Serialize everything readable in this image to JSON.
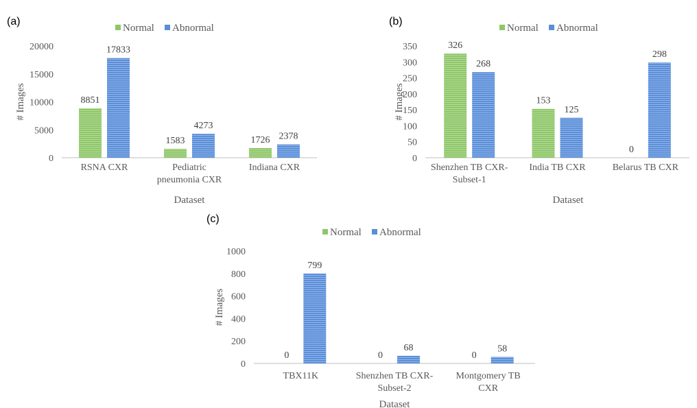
{
  "colors": {
    "normal": "#8fc66a",
    "abnormal": "#5b8ed8",
    "axis": "#bfbfbf"
  },
  "chart_data": [
    {
      "type": "bar",
      "panel_label": "(a)",
      "categories": [
        [
          "RSNA CXR"
        ],
        [
          "Pediatric",
          "pneumonia CXR"
        ],
        [
          "Indiana CXR"
        ]
      ],
      "series": [
        {
          "name": "Normal",
          "values": [
            8851,
            1583,
            1726
          ]
        },
        {
          "name": "Abnormal",
          "values": [
            17833,
            4273,
            2378
          ]
        }
      ],
      "data_labels": [
        [
          "8851",
          "1583",
          "1726"
        ],
        [
          "17833",
          "4273",
          "2378"
        ]
      ],
      "xlabel": "Dataset",
      "ylabel": "# Images",
      "ylim": [
        0,
        20000
      ],
      "yticks": [
        0,
        5000,
        10000,
        15000,
        20000
      ],
      "grid": false,
      "legend": "top"
    },
    {
      "type": "bar",
      "panel_label": "(b)",
      "categories": [
        [
          "Shenzhen TB CXR-",
          "Subset-1"
        ],
        [
          "India TB CXR"
        ],
        [
          "Belarus TB CXR"
        ]
      ],
      "series": [
        {
          "name": "Normal",
          "values": [
            326,
            153,
            0
          ]
        },
        {
          "name": "Abnormal",
          "values": [
            268,
            125,
            298
          ]
        }
      ],
      "data_labels": [
        [
          "326",
          "153",
          "0"
        ],
        [
          "268",
          "125",
          "298"
        ]
      ],
      "xlabel": "Dataset",
      "ylabel": "# Images",
      "ylim": [
        0,
        350
      ],
      "yticks": [
        0,
        50,
        100,
        150,
        200,
        250,
        300,
        350
      ],
      "grid": false,
      "legend": "top"
    },
    {
      "type": "bar",
      "panel_label": "(c)",
      "categories": [
        [
          "TBX11K"
        ],
        [
          "Shenzhen TB CXR-",
          "Subset-2"
        ],
        [
          "Montgomery TB",
          "CXR"
        ]
      ],
      "series": [
        {
          "name": "Normal",
          "values": [
            0,
            0,
            0
          ]
        },
        {
          "name": "Abnormal",
          "values": [
            799,
            68,
            58
          ]
        }
      ],
      "data_labels": [
        [
          "0",
          "0",
          "0"
        ],
        [
          "799",
          "68",
          "58"
        ]
      ],
      "xlabel": "Dataset",
      "ylabel": "# Images",
      "ylim": [
        0,
        1000
      ],
      "yticks": [
        0,
        200,
        400,
        600,
        800,
        1000
      ],
      "grid": false,
      "legend": "top"
    }
  ]
}
